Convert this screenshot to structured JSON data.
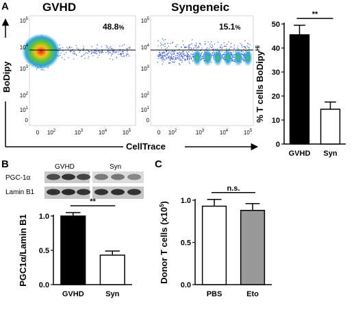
{
  "colors": {
    "black_bar": "#000000",
    "white_bar": "#ffffff",
    "gray_bar": "#999999"
  },
  "panels": {
    "A": {
      "letter": "A"
    },
    "B": {
      "letter": "B"
    },
    "C": {
      "letter": "C"
    }
  },
  "flow": {
    "gvhd": {
      "title": "GVHD",
      "percent": "48.8",
      "percent_unit": "%"
    },
    "syn": {
      "title": "Syngeneic",
      "percent": "15.1",
      "percent_unit": "%"
    },
    "ylabel": "BoDipy",
    "xlabel": "CellTrace",
    "y_ticks": [
      "10",
      "10",
      "10",
      "10",
      "10",
      "0"
    ],
    "y_tick_exp": [
      "5",
      "4",
      "3",
      "2",
      "1",
      ""
    ],
    "x_ticks": [
      "0",
      "10",
      "10",
      "10",
      "10"
    ],
    "x_tick_exp": [
      "",
      "2",
      "3",
      "4",
      "5"
    ]
  },
  "western": {
    "lanes": [
      "GVHD",
      "Syn"
    ],
    "rows": [
      "PGC-1α",
      "Lamin B1"
    ]
  },
  "chart_data": [
    {
      "type": "bar",
      "panel": "A",
      "categories": [
        "GVHD",
        "Syn"
      ],
      "values": [
        45.5,
        14.5
      ],
      "errors": [
        4.0,
        3.0
      ],
      "ylabel": "% T cells BoDipy",
      "ylabel_sup": "Hi",
      "ylim": [
        0,
        50
      ],
      "yticks": [
        0,
        10,
        20,
        30,
        40,
        50
      ],
      "significance": "**",
      "fill": [
        "#000000",
        "#ffffff"
      ]
    },
    {
      "type": "bar",
      "panel": "B",
      "categories": [
        "GVHD",
        "Syn"
      ],
      "values": [
        1.0,
        0.43
      ],
      "errors": [
        0.05,
        0.06
      ],
      "ylabel": "PGC1α/Lamin B1",
      "ylim": [
        0,
        1.0
      ],
      "yticks": [
        "0.0",
        "0.5",
        "1.0"
      ],
      "significance": "**",
      "fill": [
        "#000000",
        "#ffffff"
      ]
    },
    {
      "type": "bar",
      "panel": "C",
      "categories": [
        "PBS",
        "Eto"
      ],
      "values": [
        0.93,
        0.88
      ],
      "errors": [
        0.08,
        0.08
      ],
      "ylabel": "Donor T cells (x10",
      "ylabel_sup": "5",
      "ylabel_close": ")",
      "ylim": [
        0,
        1.0
      ],
      "yticks": [
        "0.0",
        "0.5",
        "1.0"
      ],
      "significance": "n.s.",
      "fill": [
        "#ffffff",
        "#999999"
      ]
    }
  ]
}
